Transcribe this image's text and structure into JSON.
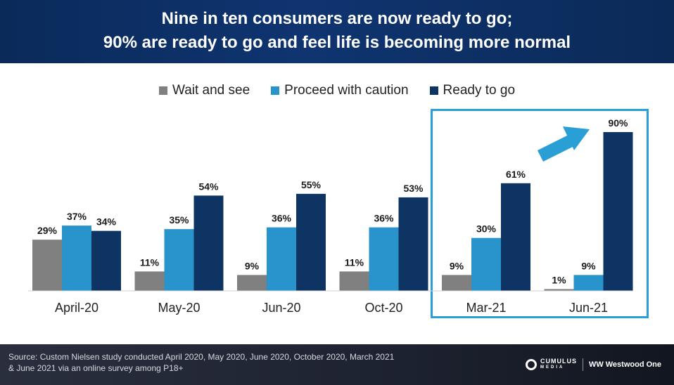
{
  "header": {
    "line1": "Nine in ten consumers are now ready to go;",
    "line2": "90% are ready to go and feel life is becoming more normal"
  },
  "colors": {
    "header_bg": "#0f3470",
    "highlight_border": "#2a9fd6",
    "arrow": "#2a9fd6"
  },
  "chart_data": {
    "type": "bar",
    "categories": [
      "April-20",
      "May-20",
      "Jun-20",
      "Oct-20",
      "Mar-21",
      "Jun-21"
    ],
    "series": [
      {
        "name": "Wait and see",
        "color": "#808080",
        "values": [
          29,
          11,
          9,
          11,
          9,
          1
        ]
      },
      {
        "name": "Proceed with caution",
        "color": "#2994cc",
        "values": [
          37,
          35,
          36,
          36,
          30,
          9
        ]
      },
      {
        "name": "Ready to go",
        "color": "#0e3464",
        "values": [
          34,
          54,
          55,
          53,
          61,
          90
        ]
      }
    ],
    "value_format": "%",
    "ylim": [
      0,
      100
    ],
    "grid": false,
    "legend_position": "top-center",
    "highlighted_categories": [
      "Mar-21",
      "Jun-21"
    ]
  },
  "footer": {
    "source_line1": "Source: Custom Nielsen study conducted April 2020, May 2020, June 2020, October 2020, March 2021",
    "source_line2": "& June 2021 via an online survey among P18+",
    "logo_cumulus": "CUMULUS",
    "logo_cumulus_sub": "MEDIA",
    "logo_westwood": "Westwood One",
    "logo_westwood_mark": "WW"
  }
}
